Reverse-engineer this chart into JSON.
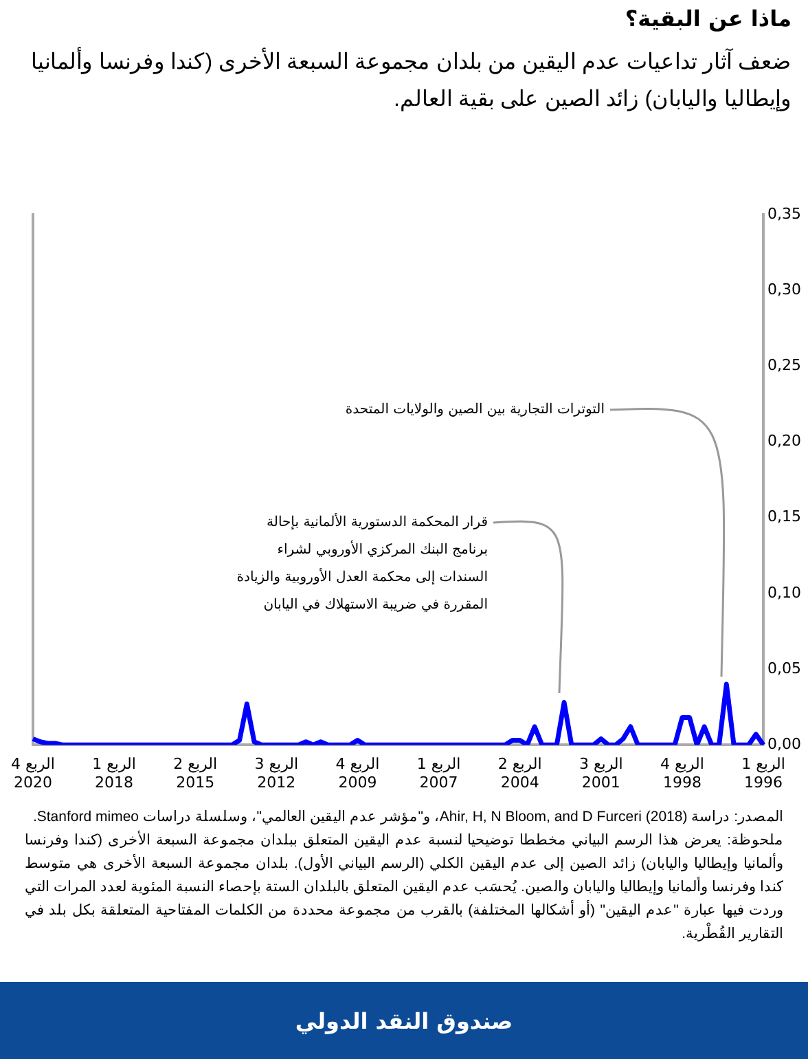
{
  "chart_data": {
    "type": "line",
    "title": "ماذا عن البقية؟",
    "subtitle": "ضعف آثار تداعيات عدم اليقين من بلدان مجموعة السبعة الأخرى (كندا وفرنسا وألمانيا وإيطاليا واليابان) زائد الصين على بقية العالم.",
    "categories": [
      "الربع 4 2020",
      null,
      null,
      null,
      null,
      null,
      null,
      null,
      null,
      null,
      null,
      "الربع 1 2018",
      null,
      null,
      null,
      null,
      null,
      null,
      null,
      null,
      null,
      null,
      "الربع 2 2015",
      null,
      null,
      null,
      null,
      null,
      null,
      null,
      null,
      null,
      null,
      "الربع 3 2012",
      null,
      null,
      null,
      null,
      null,
      null,
      null,
      null,
      null,
      null,
      "الربع 4 2009",
      null,
      null,
      null,
      null,
      null,
      null,
      null,
      null,
      null,
      null,
      "الربع 1 2007",
      null,
      null,
      null,
      null,
      null,
      null,
      null,
      null,
      null,
      null,
      "الربع 2 2004",
      null,
      null,
      null,
      null,
      null,
      null,
      null,
      null,
      null,
      null,
      "الربع 3 2001",
      null,
      null,
      null,
      null,
      null,
      null,
      null,
      null,
      null,
      null,
      "الربع 4 1998",
      null,
      null,
      null,
      null,
      null,
      null,
      null,
      null,
      null,
      null,
      "الربع 1 1996"
    ],
    "series": [
      {
        "color": "#0000ff",
        "values": [
          0.004,
          0.002,
          0.001,
          0.001,
          0,
          0,
          0,
          0,
          0,
          0,
          0,
          0,
          0,
          0,
          0,
          0,
          0,
          0,
          0,
          0,
          0,
          0,
          0,
          0,
          0,
          0,
          0,
          0,
          0.003,
          0.027,
          0.002,
          0,
          0,
          0,
          0,
          0,
          0,
          0.002,
          0,
          0.002,
          0,
          0,
          0,
          0,
          0.003,
          0,
          0,
          0,
          0,
          0,
          0,
          0,
          0,
          0,
          0,
          0,
          0,
          0,
          0,
          0,
          0,
          0,
          0,
          0,
          0,
          0.003,
          0.003,
          0,
          0.012,
          0,
          0,
          0,
          0.028,
          0,
          0,
          0,
          0,
          0.004,
          0,
          0,
          0.004,
          0.012,
          0,
          0,
          0,
          0,
          0,
          0,
          0.018,
          0.018,
          0,
          0.012,
          0,
          0,
          0.04,
          0,
          0,
          0,
          0.007,
          0
        ]
      }
    ],
    "ylim": [
      0,
      0.35
    ],
    "yticks": [
      {
        "value": 0,
        "label": "0,00"
      },
      {
        "value": 0.05,
        "label": "0,05"
      },
      {
        "value": 0.1,
        "label": "0,10"
      },
      {
        "value": 0.15,
        "label": "0,15"
      },
      {
        "value": 0.2,
        "label": "0,20"
      },
      {
        "value": 0.25,
        "label": "0,25"
      },
      {
        "value": 0.3,
        "label": "0,30"
      },
      {
        "value": 0.35,
        "label": "0,35"
      }
    ],
    "grid": false,
    "annotations": [
      "التوترات التجارية بين الصين والولايات المتحدة",
      "قرار المحكمة الدستورية الألمانية بإحالة برنامج البنك المركزي الأوروبي لشراء السندات إلى محكمة العدل الأوروبية والزيادة المقررة في ضريبة الاستهلاك في اليابان",
      "المصدر: دراسة Ahir, H, N Bloom, and D Furceri (2018)، و\"مؤشر عدم اليقين العالمي\"، وسلسلة دراسات Stanford mimeo.",
      "ملحوظة: يعرض هذا الرسم البياني مخططا توضيحيا لنسبة عدم اليقين المتعلق ببلدان مجموعة السبعة الأخرى (كندا وفرنسا وألمانيا وإيطاليا واليابان) زائد الصين إلى عدم اليقين الكلي (الرسم البياني الأول). بلدان مجموعة السبعة الأخرى هي متوسط كندا وفرنسا وألمانيا وإيطاليا واليابان والصين. يُحسَب عدم اليقين المتعلق بالبلدان الستة بإحصاء النسبة المئوية لعدد المرات التي وردت فيها عبارة \"عدم اليقين\" (أو أشكالها المختلفة) بالقرب من مجموعة محددة من الكلمات المفتاحية المتعلقة بكل بلد في التقارير القُطْرية.",
      "صندوق النقد الدولي"
    ]
  }
}
